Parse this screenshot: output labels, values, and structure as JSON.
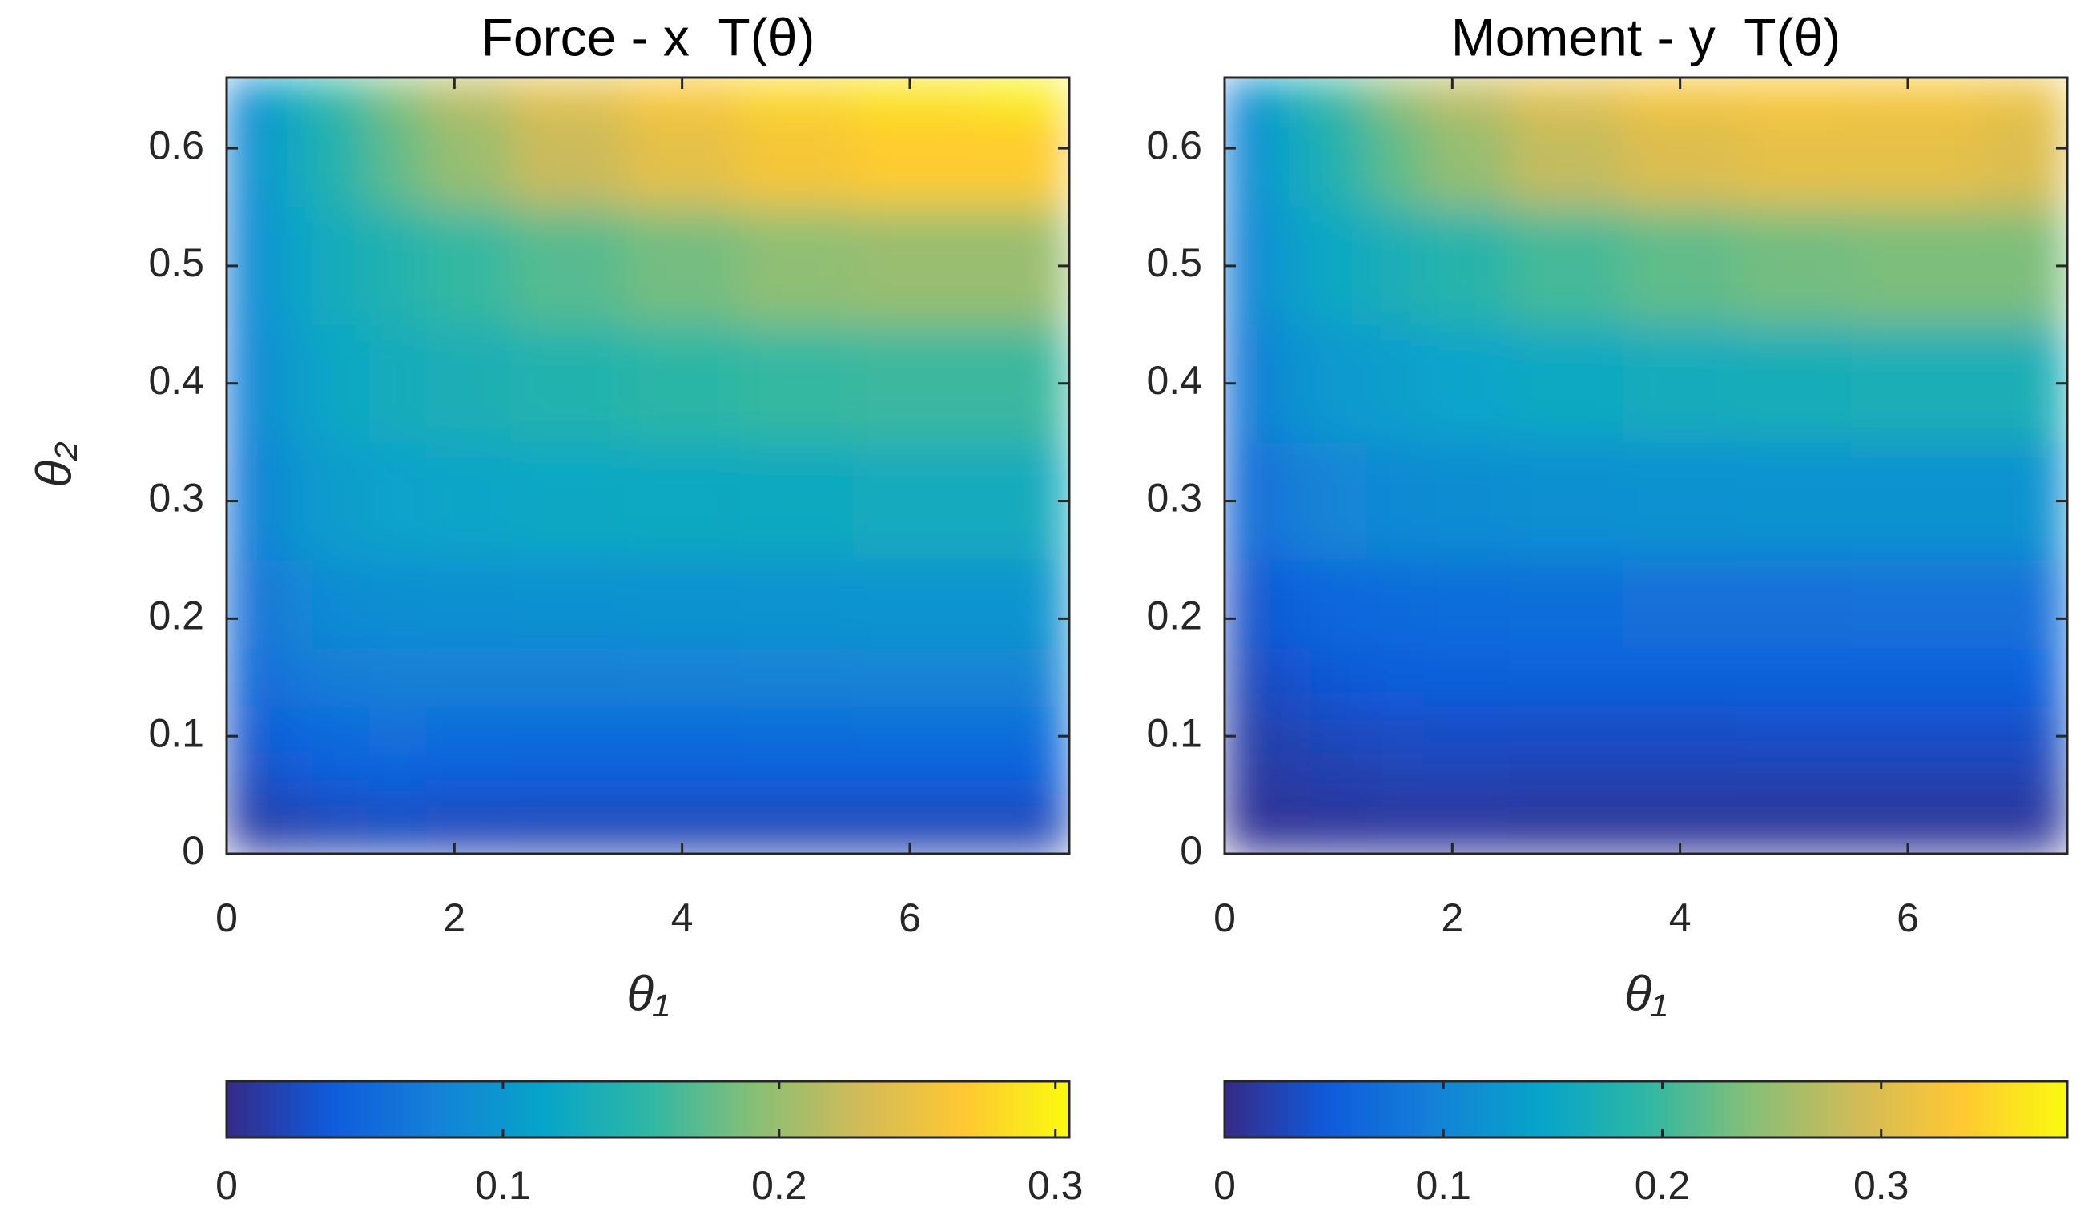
{
  "chart_data": [
    {
      "type": "heatmap",
      "title": "Force - x  T(θ)",
      "xlabel": "θ₁",
      "ylabel": "θ₂",
      "x": [
        0,
        0.2,
        0.5,
        1,
        1.5,
        2,
        3,
        4,
        5,
        6,
        7.3
      ],
      "y": [
        0,
        0.03,
        0.07,
        0.1,
        0.15,
        0.2,
        0.3,
        0.4,
        0.5,
        0.6,
        0.66
      ],
      "z": [
        [
          0.005,
          0.008,
          0.01,
          0.012,
          0.014,
          0.014,
          0.013,
          0.013,
          0.013,
          0.013,
          0.013
        ],
        [
          0.01,
          0.015,
          0.02,
          0.025,
          0.028,
          0.026,
          0.025,
          0.025,
          0.025,
          0.025,
          0.025
        ],
        [
          0.015,
          0.025,
          0.035,
          0.042,
          0.045,
          0.043,
          0.042,
          0.042,
          0.042,
          0.042,
          0.042
        ],
        [
          0.02,
          0.035,
          0.048,
          0.055,
          0.058,
          0.056,
          0.055,
          0.055,
          0.056,
          0.057,
          0.057
        ],
        [
          0.025,
          0.05,
          0.065,
          0.072,
          0.075,
          0.075,
          0.075,
          0.076,
          0.077,
          0.078,
          0.078
        ],
        [
          0.03,
          0.06,
          0.078,
          0.087,
          0.09,
          0.092,
          0.093,
          0.095,
          0.096,
          0.097,
          0.097
        ],
        [
          0.035,
          0.07,
          0.095,
          0.108,
          0.113,
          0.117,
          0.12,
          0.123,
          0.125,
          0.126,
          0.126
        ],
        [
          0.04,
          0.078,
          0.105,
          0.12,
          0.128,
          0.135,
          0.143,
          0.15,
          0.155,
          0.158,
          0.158
        ],
        [
          0.045,
          0.085,
          0.112,
          0.13,
          0.142,
          0.155,
          0.17,
          0.183,
          0.195,
          0.2,
          0.2
        ],
        [
          0.05,
          0.09,
          0.12,
          0.145,
          0.175,
          0.2,
          0.225,
          0.245,
          0.26,
          0.27,
          0.27
        ],
        [
          0.05,
          0.092,
          0.125,
          0.155,
          0.19,
          0.22,
          0.245,
          0.265,
          0.28,
          0.29,
          0.3
        ]
      ],
      "xlim": [
        0,
        7.4
      ],
      "ylim": [
        0,
        0.66
      ],
      "xticks": [
        0,
        2,
        4,
        6
      ],
      "yticks": [
        0,
        0.1,
        0.2,
        0.3,
        0.4,
        0.5,
        0.6
      ],
      "colorbar": {
        "clim": [
          0,
          0.305
        ],
        "ticks": [
          0,
          0.1,
          0.2,
          0.3
        ]
      }
    },
    {
      "type": "heatmap",
      "title": "Moment - y  T(θ)",
      "xlabel": "θ₁",
      "x": [
        0,
        0.2,
        0.5,
        1,
        1.5,
        2,
        3,
        4,
        5,
        6,
        7.3
      ],
      "y": [
        0,
        0.03,
        0.07,
        0.1,
        0.15,
        0.2,
        0.3,
        0.4,
        0.5,
        0.6,
        0.66
      ],
      "z": [
        [
          0.003,
          0.004,
          0.005,
          0.006,
          0.006,
          0.006,
          0.006,
          0.006,
          0.006,
          0.006,
          0.006
        ],
        [
          0.005,
          0.008,
          0.01,
          0.012,
          0.014,
          0.014,
          0.013,
          0.013,
          0.013,
          0.013,
          0.013
        ],
        [
          0.008,
          0.013,
          0.018,
          0.022,
          0.025,
          0.025,
          0.024,
          0.024,
          0.024,
          0.024,
          0.024
        ],
        [
          0.01,
          0.018,
          0.025,
          0.03,
          0.034,
          0.035,
          0.035,
          0.035,
          0.036,
          0.036,
          0.036
        ],
        [
          0.015,
          0.028,
          0.038,
          0.045,
          0.05,
          0.052,
          0.053,
          0.054,
          0.055,
          0.055,
          0.055
        ],
        [
          0.02,
          0.04,
          0.055,
          0.064,
          0.068,
          0.07,
          0.072,
          0.073,
          0.074,
          0.075,
          0.075
        ],
        [
          0.03,
          0.065,
          0.09,
          0.102,
          0.108,
          0.112,
          0.116,
          0.118,
          0.12,
          0.12,
          0.12
        ],
        [
          0.04,
          0.085,
          0.115,
          0.13,
          0.138,
          0.145,
          0.155,
          0.162,
          0.167,
          0.17,
          0.17
        ],
        [
          0.045,
          0.1,
          0.135,
          0.155,
          0.17,
          0.185,
          0.205,
          0.22,
          0.23,
          0.235,
          0.235
        ],
        [
          0.05,
          0.11,
          0.15,
          0.18,
          0.22,
          0.25,
          0.28,
          0.3,
          0.31,
          0.31,
          0.3
        ],
        [
          0.05,
          0.115,
          0.16,
          0.2,
          0.25,
          0.28,
          0.31,
          0.33,
          0.335,
          0.33,
          0.32
        ]
      ],
      "xlim": [
        0,
        7.4
      ],
      "ylim": [
        0,
        0.66
      ],
      "xticks": [
        0,
        2,
        4,
        6
      ],
      "yticks": [
        0,
        0.1,
        0.2,
        0.3,
        0.4,
        0.5,
        0.6
      ],
      "colorbar": {
        "clim": [
          0,
          0.385
        ],
        "ticks": [
          0,
          0.1,
          0.2,
          0.3
        ]
      }
    }
  ]
}
